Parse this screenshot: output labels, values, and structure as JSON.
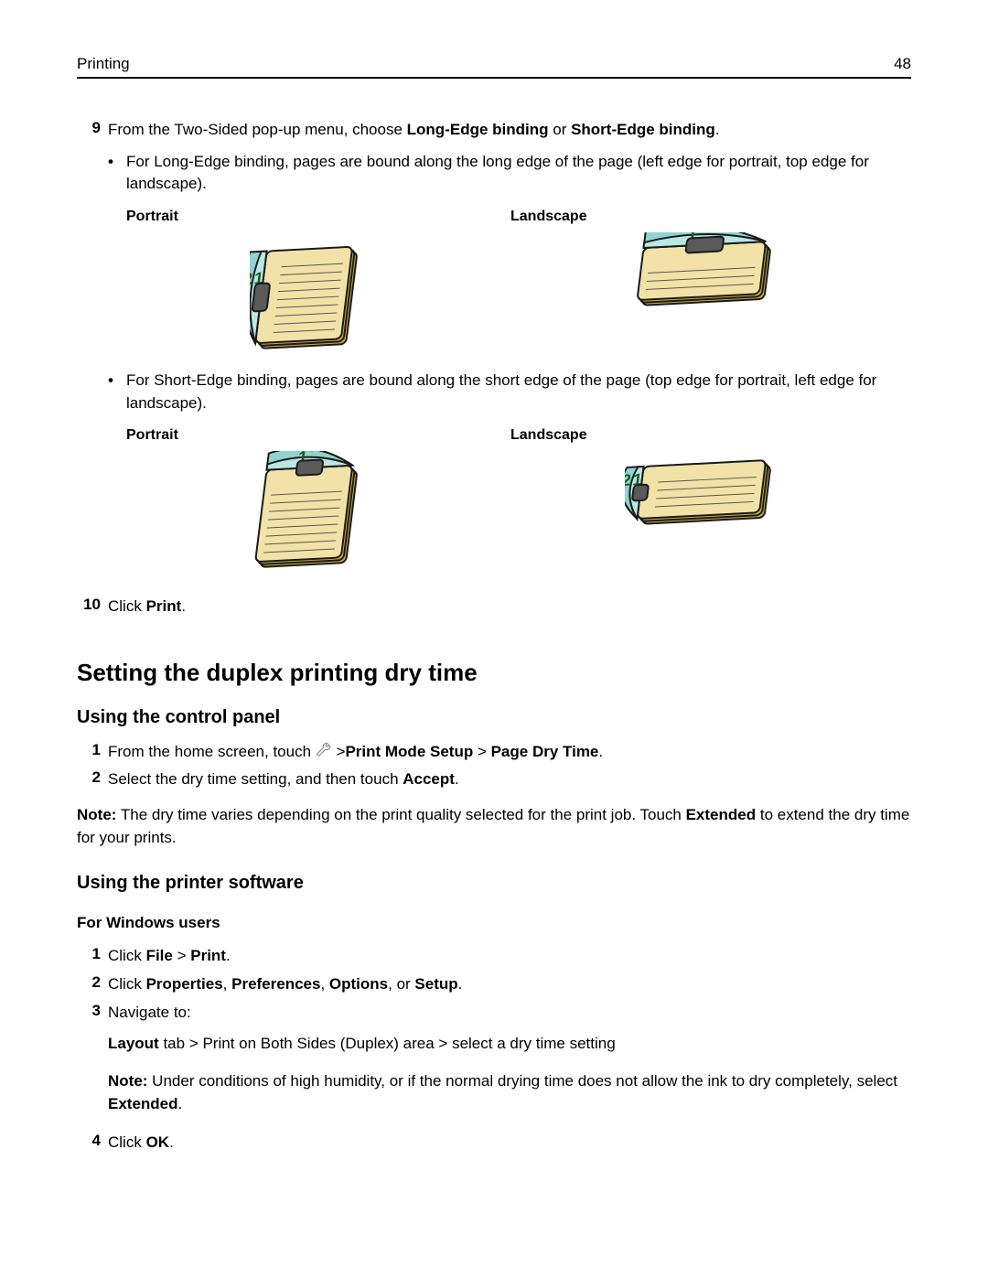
{
  "header": {
    "section": "Printing",
    "page_number": "48"
  },
  "step9": {
    "num": "9",
    "prefix": "From the Two‑Sided pop‑up menu, choose ",
    "opt1": "Long‑Edge binding",
    "mid": " or ",
    "opt2": "Short‑Edge binding",
    "suffix": "."
  },
  "long_edge_bullet": "For Long‑Edge binding, pages are bound along the long edge of the page (left edge for portrait, top edge for landscape).",
  "short_edge_bullet": "For Short‑Edge binding, pages are bound along the short edge of the page (top edge for portrait, left edge for landscape).",
  "labels": {
    "portrait": "Portrait",
    "landscape": "Landscape"
  },
  "step10": {
    "num": "10",
    "prefix": "Click ",
    "b1": "Print",
    "suffix": "."
  },
  "h2": "Setting the duplex printing dry time",
  "h3a": "Using the control panel",
  "cp_step1": {
    "num": "1",
    "prefix": "From the home screen, touch ",
    "gt": " >",
    "b1": "Print Mode Setup",
    "sep": " > ",
    "b2": "Page Dry Time",
    "suffix": "."
  },
  "cp_step2": {
    "num": "2",
    "prefix": "Select the dry time setting, and then touch ",
    "b1": "Accept",
    "suffix": "."
  },
  "note1": {
    "b1": "Note:",
    "t1": " The dry time varies depending on the print quality selected for the print job. Touch ",
    "b2": "Extended",
    "t2": " to extend the dry time for your prints."
  },
  "h3b": "Using the printer software",
  "h4": "For Windows users",
  "w_step1": {
    "num": "1",
    "prefix": "Click ",
    "b1": "File",
    "sep": " > ",
    "b2": "Print",
    "suffix": "."
  },
  "w_step2": {
    "num": "2",
    "prefix": "Click ",
    "b1": "Properties",
    "c": ", ",
    "b2": "Preferences",
    "b3": "Options",
    "or": ", or ",
    "b4": "Setup",
    "suffix": "."
  },
  "w_step3": {
    "num": "3",
    "text": "Navigate to:"
  },
  "w_step3_sub": {
    "b1": "Layout",
    "t1": " tab > Print on Both Sides (Duplex) area > select a dry time setting"
  },
  "w_step3_note": {
    "b1": "Note:",
    "t1": " Under conditions of high humidity, or if the normal drying time does not allow the ink to dry completely, select ",
    "b2": "Extended",
    "suffix": "."
  },
  "w_step4": {
    "num": "4",
    "prefix": "Click ",
    "b1": "OK",
    "suffix": "."
  },
  "colors": {
    "paper": "#f3e2a7",
    "paper_shadow": "#c9a93f",
    "page_top": "#b9e7e4",
    "page_top2": "#8fd4cf",
    "rule_line": "#555555",
    "number_stroke": "#1a5a1a",
    "clip": "#5a5a5a",
    "outline": "#1a1a1a"
  }
}
